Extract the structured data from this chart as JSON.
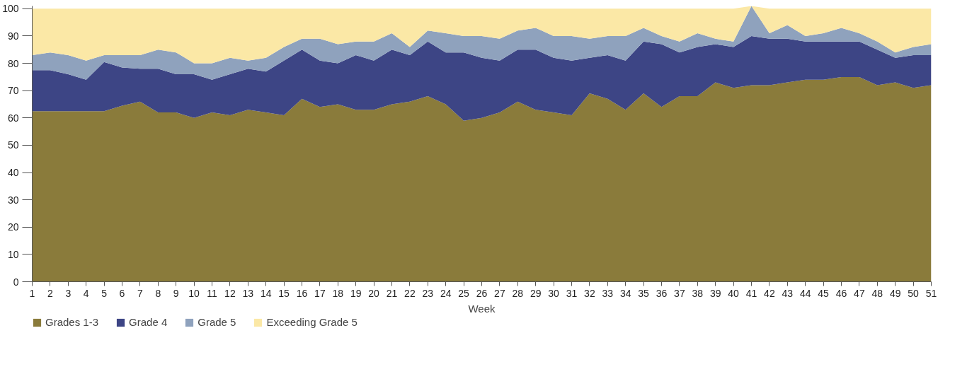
{
  "chart_data": {
    "type": "area",
    "stacked": true,
    "xlabel": "Week",
    "x": [
      1,
      2,
      3,
      4,
      5,
      6,
      7,
      8,
      9,
      10,
      11,
      12,
      13,
      14,
      15,
      16,
      17,
      18,
      19,
      20,
      21,
      22,
      23,
      24,
      25,
      26,
      27,
      28,
      29,
      30,
      31,
      32,
      33,
      34,
      35,
      36,
      37,
      38,
      39,
      40,
      41,
      42,
      43,
      44,
      45,
      46,
      47,
      48,
      49,
      50,
      51
    ],
    "xlim": [
      1,
      51
    ],
    "xticks": [
      1,
      2,
      3,
      4,
      5,
      6,
      7,
      8,
      9,
      10,
      11,
      12,
      13,
      14,
      15,
      16,
      17,
      18,
      19,
      20,
      21,
      22,
      23,
      24,
      25,
      26,
      27,
      28,
      29,
      30,
      31,
      32,
      33,
      34,
      35,
      36,
      37,
      38,
      39,
      40,
      41,
      42,
      43,
      44,
      45,
      46,
      47,
      48,
      49,
      50,
      51
    ],
    "ylim": [
      0,
      101
    ],
    "yticks": [
      0,
      10,
      20,
      30,
      40,
      50,
      60,
      70,
      80,
      90,
      100
    ],
    "grid": false,
    "legend": "bottom",
    "series": [
      {
        "name": "Grades 1-3",
        "color": "#8a7b3b",
        "values": [
          62.5,
          62.5,
          62.5,
          62.5,
          62.5,
          64.5,
          66,
          62,
          62,
          60,
          62,
          61,
          63,
          62,
          61,
          67,
          64,
          65,
          63,
          63,
          65,
          66,
          68,
          65,
          59,
          60,
          62,
          66,
          63,
          62,
          61,
          69,
          67,
          63,
          69,
          64,
          68,
          68,
          73,
          71,
          72,
          72,
          73,
          74,
          74,
          75,
          75,
          72,
          73,
          71,
          72
        ]
      },
      {
        "name": "Grade 4",
        "color": "#3d4585",
        "values": [
          15,
          15,
          13.5,
          11.5,
          18,
          14,
          12,
          16,
          14,
          16,
          12,
          15,
          15,
          15,
          20,
          18,
          17,
          15,
          20,
          18,
          20,
          17,
          20,
          19,
          25,
          22,
          19,
          19,
          22,
          20,
          20,
          13,
          16,
          18,
          19,
          23,
          16,
          18,
          14,
          15,
          18,
          17,
          16,
          14,
          14,
          13,
          13,
          13,
          9,
          12,
          11
        ]
      },
      {
        "name": "Grade 5",
        "color": "#8fa2bd",
        "values": [
          5.5,
          6.5,
          7,
          7,
          2.5,
          4.5,
          5,
          7,
          8,
          4,
          6,
          6,
          3,
          5,
          5,
          4,
          8,
          7,
          5,
          7,
          6,
          3,
          4,
          7,
          6,
          8,
          8,
          7,
          8,
          8,
          9,
          7,
          7,
          9,
          5,
          3,
          4,
          5,
          2,
          2,
          11,
          2,
          5,
          2,
          3,
          5,
          3,
          3,
          2,
          3,
          4
        ]
      },
      {
        "name": "Exceeding Grade 5",
        "color": "#fbe8a6",
        "values": [
          17,
          16,
          17,
          19,
          17,
          17,
          17,
          15,
          16,
          20,
          20,
          18,
          19,
          18,
          14,
          11,
          11,
          13,
          12,
          12,
          9,
          14,
          8,
          9,
          10,
          10,
          11,
          8,
          7,
          10,
          10,
          11,
          10,
          10,
          7,
          10,
          12,
          9,
          11,
          12,
          0,
          9,
          6,
          10,
          9,
          7,
          9,
          12,
          16,
          14,
          13
        ]
      }
    ]
  }
}
